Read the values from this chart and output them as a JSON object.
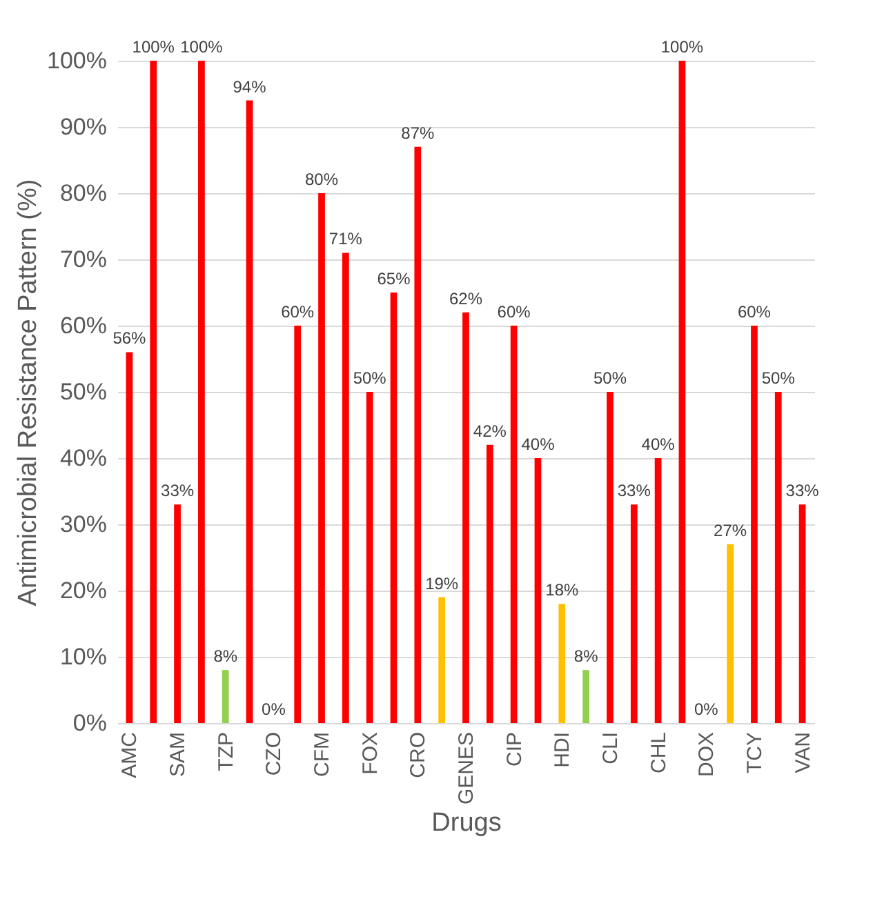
{
  "chart_data": {
    "type": "bar",
    "xlabel": "Drugs",
    "ylabel": "Antimicrobial Resistance Pattern (%)",
    "categories": [
      "AMC",
      null,
      "SAM",
      null,
      "TZP",
      null,
      "CZO",
      null,
      "CFM",
      null,
      "FOX",
      null,
      "CRO",
      null,
      "GENES",
      null,
      "CIP",
      null,
      "HDI",
      null,
      "CLI",
      null,
      "CHL",
      null,
      "DOX",
      null,
      "TCY",
      null,
      "VAN"
    ],
    "values": [
      56,
      100,
      33,
      100,
      8,
      94,
      0,
      60,
      80,
      71,
      50,
      65,
      87,
      19,
      62,
      42,
      60,
      40,
      18,
      8,
      50,
      33,
      40,
      100,
      0,
      27,
      60,
      50,
      33
    ],
    "value_labels": [
      "56%",
      "100%",
      "33%",
      "100%",
      "8%",
      "94%",
      "0%",
      "60%",
      "80%",
      "71%",
      "50%",
      "65%",
      "87%",
      "19%",
      "62%",
      "42%",
      "60%",
      "40%",
      "18%",
      "8%",
      "50%",
      "33%",
      "40%",
      "100%",
      "0%",
      "27%",
      "60%",
      "50%",
      "33%"
    ],
    "colors": [
      "#ff0000",
      "#ff0000",
      "#ff0000",
      "#ff0000",
      "#92d050",
      "#ff0000",
      "#ff0000",
      "#ff0000",
      "#ff0000",
      "#ff0000",
      "#ff0000",
      "#ff0000",
      "#ff0000",
      "#ffc000",
      "#ff0000",
      "#ff0000",
      "#ff0000",
      "#ff0000",
      "#ffc000",
      "#92d050",
      "#ff0000",
      "#ff0000",
      "#ff0000",
      "#ff0000",
      "#ff0000",
      "#ffc000",
      "#ff0000",
      "#ff0000",
      "#ff0000"
    ],
    "ylim": [
      0,
      100
    ],
    "yticks": [
      {
        "value": 0,
        "label": "0%"
      },
      {
        "value": 10,
        "label": "10%"
      },
      {
        "value": 20,
        "label": "20%"
      },
      {
        "value": 30,
        "label": "30%"
      },
      {
        "value": 40,
        "label": "40%"
      },
      {
        "value": 50,
        "label": "50%"
      },
      {
        "value": 60,
        "label": "60%"
      },
      {
        "value": 70,
        "label": "70%"
      },
      {
        "value": 80,
        "label": "80%"
      },
      {
        "value": 90,
        "label": "90%"
      },
      {
        "value": 100,
        "label": "100%"
      }
    ],
    "grid": "y"
  }
}
